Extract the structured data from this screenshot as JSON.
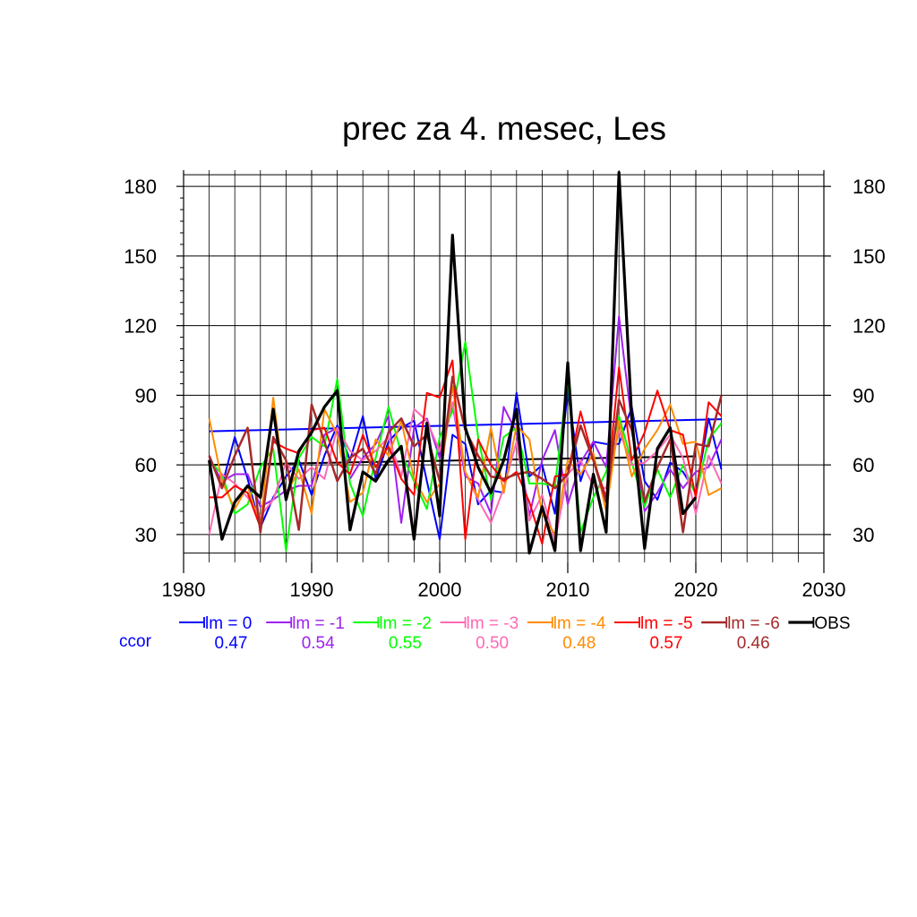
{
  "chart_data": {
    "type": "line",
    "title": "prec za 4. mesec, Les",
    "xlabel": "",
    "ylabel": "",
    "xlim": [
      1980,
      2030
    ],
    "ylim": [
      18,
      187
    ],
    "x_ticks": [
      1980,
      1990,
      2000,
      2010,
      2020,
      2030
    ],
    "y_ticks": [
      30,
      60,
      90,
      120,
      150,
      180
    ],
    "x_grid": [
      1982,
      1984,
      1986,
      1988,
      1990,
      1992,
      1994,
      1996,
      1998,
      2000,
      2002,
      2004,
      2006,
      2008,
      2010,
      2012,
      2014,
      2016,
      2018,
      2020,
      2022,
      2024,
      2026,
      2028
    ],
    "y_grid": [
      22,
      30,
      60,
      90,
      120,
      150,
      180,
      185
    ],
    "grid": true,
    "legend_position": "bottom",
    "ccor_label": "ccor",
    "x": [
      1982,
      1983,
      1984,
      1985,
      1986,
      1987,
      1988,
      1989,
      1990,
      1991,
      1992,
      1993,
      1994,
      1995,
      1996,
      1997,
      1998,
      1999,
      2000,
      2001,
      2002,
      2003,
      2004,
      2005,
      2006,
      2007,
      2008,
      2009,
      2010,
      2011,
      2012,
      2013,
      2014,
      2015,
      2016,
      2017,
      2018,
      2019,
      2020,
      2021,
      2022
    ],
    "series": [
      {
        "name": "lm = 0",
        "color": "#0000ff",
        "ccor": "0.47",
        "width": 2,
        "values": [
          64,
          51,
          72,
          54,
          33,
          46,
          55,
          62,
          47,
          64,
          77,
          62,
          81,
          54,
          70,
          76,
          79,
          53,
          28,
          73,
          69,
          43,
          49,
          48,
          91,
          55,
          60,
          39,
          92,
          53,
          70,
          69,
          69,
          85,
          53,
          45,
          61,
          57,
          48,
          80,
          58
        ]
      },
      {
        "name": "lm = -1",
        "color": "#a020f0",
        "ccor": "0.54",
        "width": 2,
        "values": [
          63,
          53,
          56,
          56,
          42,
          45,
          49,
          51,
          51,
          73,
          76,
          54,
          63,
          69,
          81,
          35,
          76,
          80,
          63,
          86,
          55,
          52,
          39,
          85,
          74,
          38,
          62,
          75,
          43,
          61,
          70,
          59,
          124,
          78,
          40,
          48,
          58,
          50,
          57,
          59,
          71
        ]
      },
      {
        "name": "lm = -2",
        "color": "#00ff00",
        "ccor": "0.55",
        "width": 2,
        "values": [
          62,
          56,
          39,
          43,
          59,
          67,
          23,
          63,
          72,
          68,
          97,
          52,
          38,
          63,
          85,
          65,
          53,
          41,
          72,
          83,
          113,
          72,
          45,
          72,
          76,
          52,
          52,
          51,
          97,
          31,
          46,
          57,
          81,
          61,
          42,
          58,
          46,
          60,
          47,
          71,
          78
        ]
      },
      {
        "name": "lm = -3",
        "color": "#ff69b4",
        "ccor": "0.50",
        "width": 2,
        "values": [
          30,
          56,
          52,
          46,
          38,
          45,
          61,
          54,
          59,
          54,
          76,
          66,
          62,
          66,
          72,
          55,
          84,
          79,
          66,
          87,
          57,
          45,
          35,
          50,
          70,
          36,
          47,
          27,
          56,
          62,
          51,
          50,
          75,
          60,
          61,
          66,
          73,
          63,
          39,
          64,
          52
        ]
      },
      {
        "name": "lm = -4",
        "color": "#ff8c00",
        "ccor": "0.48",
        "width": 2,
        "values": [
          80,
          53,
          41,
          51,
          33,
          89,
          47,
          58,
          39,
          84,
          73,
          44,
          48,
          71,
          64,
          79,
          54,
          44,
          52,
          94,
          57,
          46,
          76,
          48,
          77,
          71,
          39,
          30,
          62,
          56,
          65,
          40,
          79,
          55,
          67,
          75,
          86,
          69,
          70,
          47,
          50
        ]
      },
      {
        "name": "lm = -5",
        "color": "#ff0000",
        "ccor": "0.57",
        "width": 2,
        "values": [
          46,
          46,
          51,
          48,
          33,
          70,
          67,
          65,
          75,
          76,
          61,
          56,
          73,
          59,
          68,
          54,
          47,
          91,
          89,
          105,
          28,
          71,
          60,
          53,
          57,
          44,
          26,
          55,
          56,
          83,
          62,
          46,
          102,
          62,
          74,
          92,
          75,
          73,
          46,
          87,
          81
        ]
      },
      {
        "name": "lm = -6",
        "color": "#a52a2a",
        "ccor": "0.46",
        "width": 2.5,
        "values": [
          64,
          50,
          64,
          76,
          31,
          72,
          62,
          32,
          86,
          70,
          53,
          63,
          67,
          56,
          74,
          80,
          68,
          73,
          53,
          98,
          75,
          64,
          55,
          54,
          56,
          57,
          54,
          50,
          56,
          77,
          62,
          44,
          88,
          75,
          44,
          59,
          71,
          31,
          69,
          68,
          90
        ]
      },
      {
        "name": "OBS",
        "color": "#000000",
        "ccor": "",
        "width": 3.2,
        "values": [
          62,
          28,
          44,
          51,
          46,
          84,
          45,
          66,
          74,
          85,
          92,
          32,
          57,
          53,
          62,
          68,
          28,
          78,
          38,
          159,
          76,
          59,
          48,
          62,
          84,
          22,
          42,
          23,
          104,
          23,
          56,
          31,
          186,
          80,
          24,
          67,
          76,
          39,
          46,
          null,
          null
        ]
      }
    ],
    "trend_lines": [
      {
        "series": "lm = 0",
        "color": "#0000ff",
        "x": [
          1982,
          2022
        ],
        "y": [
          74.5,
          79.7
        ]
      },
      {
        "series": "OBS",
        "color": "#000000",
        "x": [
          1982,
          2020
        ],
        "y": [
          60,
          63.7
        ]
      }
    ]
  }
}
